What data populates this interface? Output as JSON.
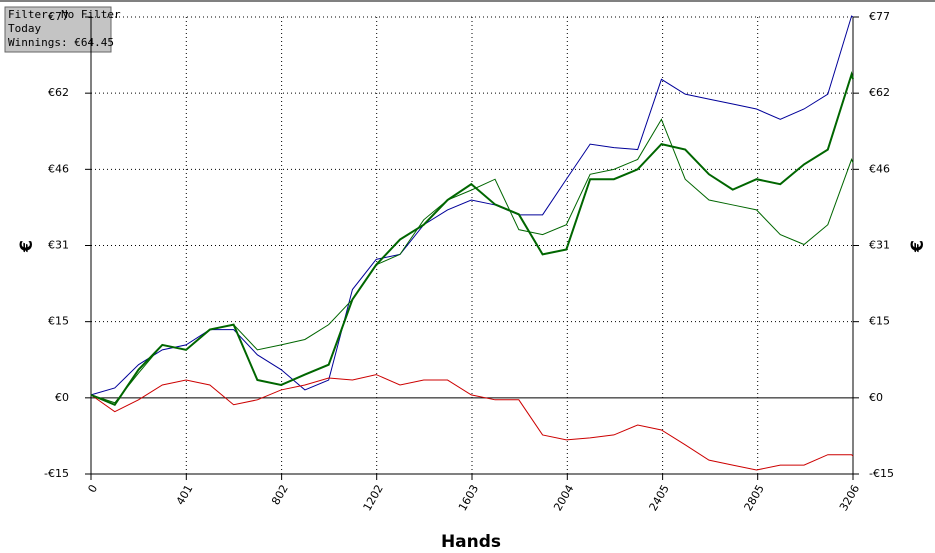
{
  "chart_data": {
    "type": "line",
    "info": [
      "Filter: No Filter",
      "Today",
      "Winnings: €64.45"
    ],
    "xlabel": "Hands",
    "ylabel": "€",
    "xlim": [
      0,
      3206
    ],
    "xticks": [
      0,
      401,
      802,
      1202,
      1603,
      2004,
      2405,
      2805,
      3206
    ],
    "ylim": [
      -15.4,
      77
    ],
    "yticks": [
      {
        "value": -15.4,
        "label": "-€15"
      },
      {
        "value": 0,
        "label": "€0"
      },
      {
        "value": 15.4,
        "label": "€15"
      },
      {
        "value": 30.8,
        "label": "€31"
      },
      {
        "value": 46.2,
        "label": "€46"
      },
      {
        "value": 61.6,
        "label": "€62"
      },
      {
        "value": 77,
        "label": "€77"
      }
    ],
    "grid": true,
    "x": [
      0,
      100,
      200,
      300,
      400,
      500,
      600,
      700,
      800,
      900,
      1000,
      1100,
      1200,
      1300,
      1400,
      1500,
      1600,
      1700,
      1800,
      1900,
      2000,
      2100,
      2200,
      2300,
      2400,
      2500,
      2600,
      2700,
      2800,
      2900,
      3000,
      3100,
      3200,
      3206
    ],
    "series": [
      {
        "color": "#000099",
        "linewidth": 1,
        "values": [
          0.6,
          2,
          6.7,
          9.7,
          10.7,
          13.8,
          13.8,
          8.7,
          5.7,
          1.6,
          3.6,
          21.9,
          28,
          29,
          35,
          38,
          40,
          39,
          37,
          37,
          44.2,
          51.3,
          50.6,
          50.2,
          64.4,
          61.4,
          60.4,
          59.4,
          58.4,
          56.3,
          58.4,
          61.4,
          77.2,
          77
        ]
      },
      {
        "color": "#006600",
        "linewidth": 1,
        "values": [
          0.6,
          -1,
          5,
          10.7,
          9.7,
          13.8,
          14.8,
          9.7,
          10.7,
          11.8,
          14.8,
          19.9,
          26.9,
          29,
          36,
          40,
          42,
          44.2,
          34,
          33,
          35,
          45.2,
          46.2,
          48.2,
          56.3,
          44.2,
          40,
          39,
          38,
          33,
          31,
          35,
          48.2,
          47.5
        ]
      },
      {
        "color": "#cc0000",
        "linewidth": 1,
        "values": [
          0.6,
          -2.8,
          -0.4,
          2.6,
          3.6,
          2.6,
          -1.4,
          -0.4,
          1.6,
          2.6,
          4,
          3.6,
          4.7,
          2.6,
          3.6,
          3.6,
          0.6,
          -0.4,
          -0.4,
          -7.5,
          -8.5,
          -8.1,
          -7.5,
          -5.5,
          -6.5,
          -9.5,
          -12.6,
          -13.6,
          -14.6,
          -13.6,
          -13.6,
          -11.5,
          -11.5,
          -11.8
        ]
      },
      {
        "color": "#006600",
        "linewidth": 2,
        "values": [
          0.6,
          -1.4,
          5.7,
          10.7,
          9.7,
          13.8,
          14.8,
          3.6,
          2.6,
          4.7,
          6.7,
          19.9,
          26.9,
          32,
          35,
          40,
          43.2,
          39.1,
          37.1,
          29,
          30,
          44.2,
          44.2,
          46.2,
          51.3,
          50.2,
          45.2,
          42.1,
          44.2,
          43.2,
          47.2,
          50.2,
          65.4,
          64.45
        ]
      }
    ]
  }
}
